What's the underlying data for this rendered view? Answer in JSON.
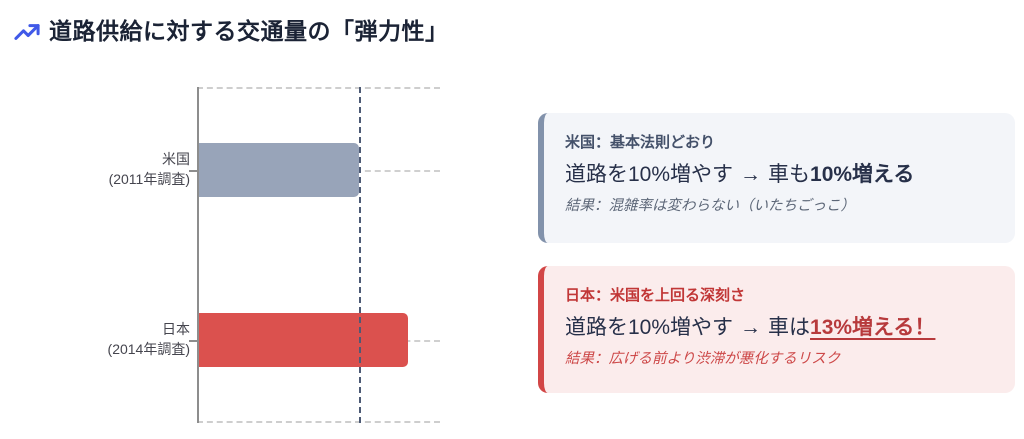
{
  "header": {
    "title": "道路供給に対する交通量の「弾力性」",
    "icon": "trending-up-icon",
    "icon_color": "#4059e8"
  },
  "chart_data": {
    "type": "bar",
    "orientation": "horizontal",
    "title": "道路供給に対する交通量の「弾力性」",
    "xlabel": "",
    "ylabel": "",
    "xlim": [
      0,
      1.5
    ],
    "reference_line_x": 1.0,
    "grid": "dashed category gridlines and dashed vertical reference line at elasticity 1.0",
    "legend": "none",
    "bars": [
      {
        "category": "米国",
        "category_note": "(2011年調査)",
        "value": 1.0,
        "color": "#98a4b9"
      },
      {
        "category": "日本",
        "category_note": "(2014年調査)",
        "value": 1.3,
        "color": "#db514e"
      }
    ]
  },
  "cards": [
    {
      "accent_color": "#8292ab",
      "heading": "米国：基本法則どおり",
      "main_prefix": "道路を10%増やす",
      "arrow": "→",
      "main_mid": "車も",
      "main_emphasis": "10%増える",
      "result": "結果：混雑率は変わらない（いたちごっこ）"
    },
    {
      "accent_color": "#d24646",
      "heading": "日本：米国を上回る深刻さ",
      "main_prefix": "道路を10%増やす",
      "arrow": "→",
      "main_mid": "車は",
      "main_emphasis": "13%増える！",
      "result": "結果：広げる前より渋滞が悪化するリスク"
    }
  ]
}
